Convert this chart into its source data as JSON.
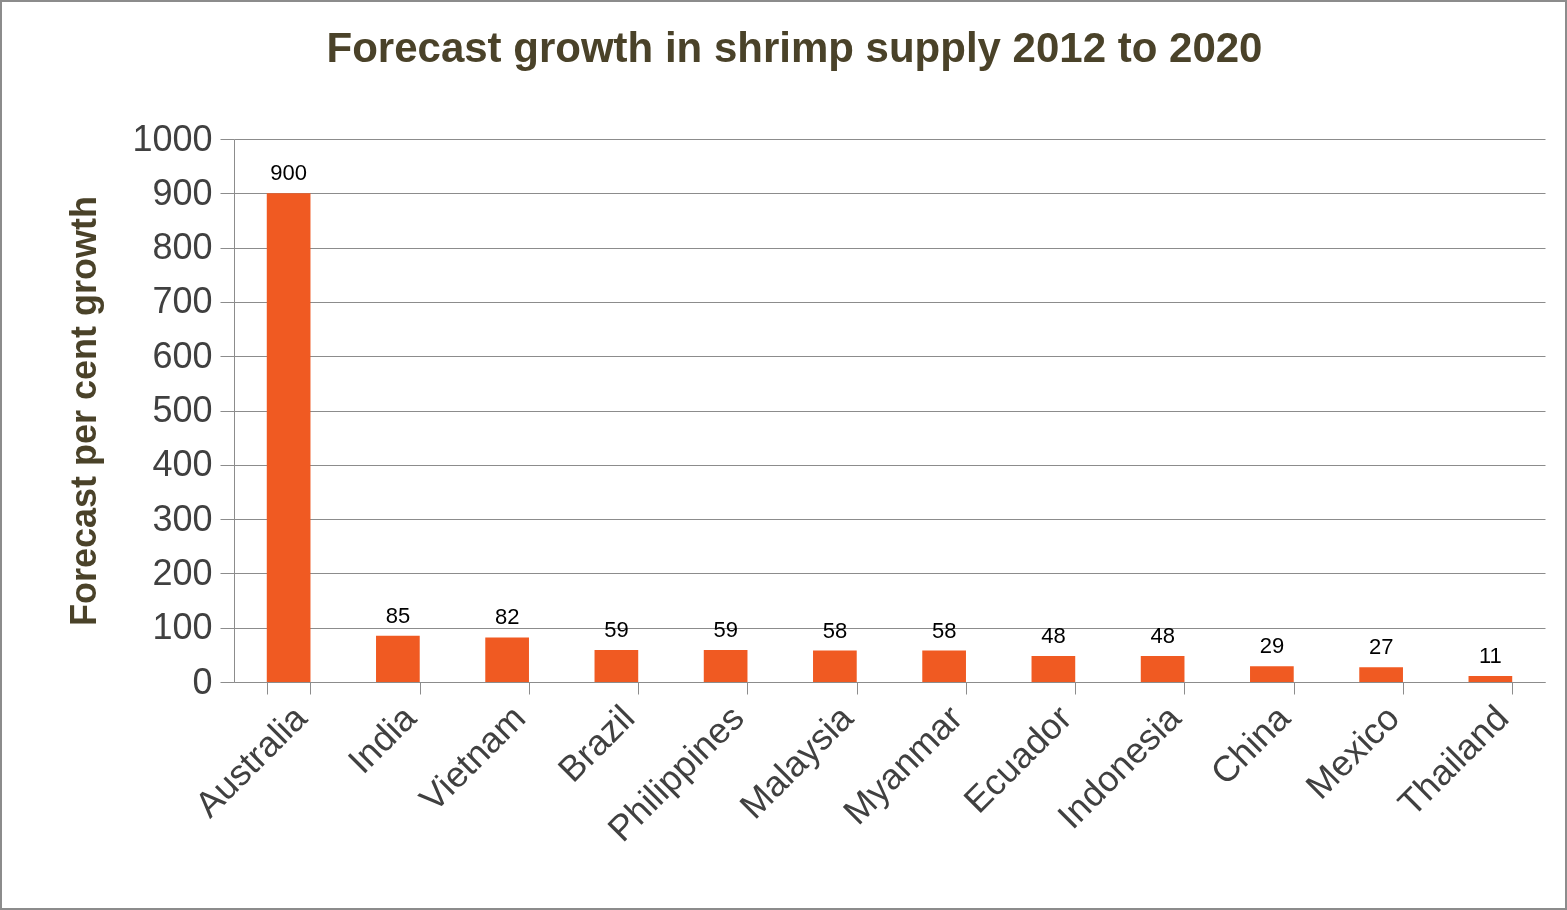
{
  "chart_data": {
    "type": "bar",
    "title": "Forecast growth in shrimp supply  2012 to 2020",
    "ylabel": "Forecast per cent growth",
    "categories": [
      "Australia",
      "India",
      "Vietnam",
      "Brazil",
      "Philippines",
      "Malaysia",
      "Myanmar",
      "Ecuador",
      "Indonesia",
      "China",
      "Mexico",
      "Thailand"
    ],
    "values": [
      900,
      85,
      82,
      59,
      59,
      58,
      58,
      48,
      48,
      29,
      27,
      11
    ],
    "color": "#f05a22",
    "ylim": [
      0,
      1000
    ],
    "yticks": [
      0,
      100,
      200,
      300,
      400,
      500,
      600,
      700,
      800,
      900,
      1000
    ],
    "grid": "y",
    "data_labels": true
  }
}
